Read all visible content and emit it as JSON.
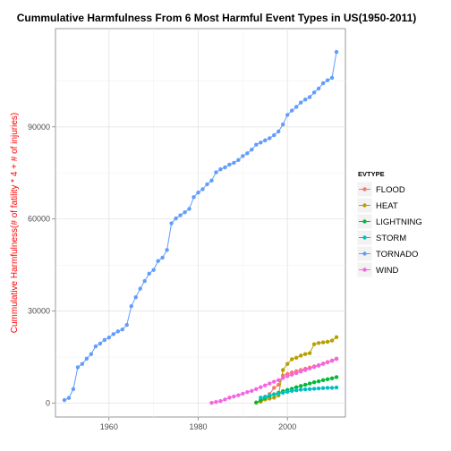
{
  "chart_data": {
    "type": "line",
    "title": "Cummulative Harmfulness From 6 Most Harmful Event Types in US(1950-2011)",
    "ylabel": "Cummulative Harmfulness(# of fatility * 4 + # of injuries)",
    "ylabel_color": "#ff0000",
    "xlabel": "",
    "xlim": [
      1948,
      2013
    ],
    "ylim": [
      -4500,
      122000
    ],
    "x_ticks": [
      1960,
      1980,
      2000
    ],
    "y_ticks": [
      0,
      30000,
      60000,
      90000
    ],
    "y_tick_labels": [
      "0",
      "30000",
      "60000",
      "90000"
    ],
    "grid": true,
    "legend_position": "right",
    "legend_title": "EVTYPE",
    "series": [
      {
        "name": "FLOOD",
        "color": "#f8766d",
        "x": [
          1993,
          1994,
          1995,
          1996,
          1997,
          1998,
          1999,
          2000,
          2001,
          2002,
          2003,
          2004,
          2005,
          2006,
          2007,
          2008,
          2009,
          2010,
          2011
        ],
        "y": [
          200,
          500,
          1500,
          3000,
          5000,
          6000,
          9000,
          9500,
          10000,
          10400,
          10800,
          11200,
          11600,
          12000,
          12400,
          12900,
          13400,
          13900,
          14500
        ]
      },
      {
        "name": "HEAT",
        "color": "#b79f00",
        "x": [
          1993,
          1994,
          1995,
          1996,
          1997,
          1998,
          1999,
          2000,
          2001,
          2002,
          2003,
          2004,
          2005,
          2006,
          2007,
          2008,
          2009,
          2010,
          2011
        ],
        "y": [
          200,
          500,
          1200,
          1500,
          1800,
          2500,
          10800,
          12800,
          14300,
          14800,
          15500,
          16000,
          16300,
          19200,
          19600,
          19800,
          20000,
          20400,
          21500
        ]
      },
      {
        "name": "LIGHTNING",
        "color": "#00ba38",
        "x": [
          1993,
          1994,
          1995,
          1996,
          1997,
          1998,
          1999,
          2000,
          2001,
          2002,
          2003,
          2004,
          2005,
          2006,
          2007,
          2008,
          2009,
          2010,
          2011
        ],
        "y": [
          200,
          1000,
          1700,
          2300,
          2900,
          3400,
          3900,
          4300,
          4700,
          5200,
          5600,
          6000,
          6400,
          6800,
          7100,
          7500,
          7800,
          8100,
          8500
        ]
      },
      {
        "name": "STORM",
        "color": "#00bfc4",
        "x": [
          1994,
          1995,
          1996,
          1997,
          1998,
          1999,
          2000,
          2001,
          2002,
          2003,
          2004,
          2005,
          2006,
          2007,
          2008,
          2009,
          2010,
          2011
        ],
        "y": [
          1800,
          2100,
          2500,
          2800,
          3100,
          3400,
          3700,
          4000,
          4200,
          4400,
          4500,
          4600,
          4700,
          4800,
          4900,
          5000,
          5000,
          5100
        ]
      },
      {
        "name": "TORNADO",
        "color": "#619cff",
        "x": [
          1950,
          1951,
          1952,
          1953,
          1954,
          1955,
          1956,
          1957,
          1958,
          1959,
          1960,
          1961,
          1962,
          1963,
          1964,
          1965,
          1966,
          1967,
          1968,
          1969,
          1970,
          1971,
          1972,
          1973,
          1974,
          1975,
          1976,
          1977,
          1978,
          1979,
          1980,
          1981,
          1982,
          1983,
          1984,
          1985,
          1986,
          1987,
          1988,
          1989,
          1990,
          1991,
          1992,
          1993,
          1994,
          1995,
          1996,
          1997,
          1998,
          1999,
          2000,
          2001,
          2002,
          2003,
          2004,
          2005,
          2006,
          2007,
          2008,
          2009,
          2010,
          2011
        ],
        "y": [
          1000,
          1700,
          4600,
          11700,
          12800,
          14500,
          16000,
          18500,
          19400,
          20600,
          21400,
          22500,
          23400,
          24000,
          25500,
          31600,
          34500,
          37300,
          39800,
          42200,
          43400,
          46300,
          47400,
          49900,
          58600,
          60200,
          61200,
          62200,
          63300,
          67100,
          68600,
          69700,
          71300,
          72500,
          75200,
          76200,
          76800,
          77700,
          78300,
          79200,
          80500,
          81400,
          82600,
          84200,
          84900,
          85600,
          86300,
          87300,
          88500,
          90800,
          93900,
          95300,
          96500,
          97900,
          98900,
          99700,
          101200,
          102500,
          104200,
          105200,
          106000,
          114400
        ]
      },
      {
        "name": "WIND",
        "color": "#f564e3",
        "x": [
          1983,
          1984,
          1985,
          1986,
          1987,
          1988,
          1989,
          1990,
          1991,
          1992,
          1993,
          1994,
          1995,
          1996,
          1997,
          1998,
          1999,
          2000,
          2001,
          2002,
          2003,
          2004,
          2005,
          2006,
          2007,
          2008,
          2009,
          2010,
          2011
        ],
        "y": [
          100,
          400,
          700,
          1200,
          1800,
          2200,
          2600,
          3100,
          3600,
          4000,
          4600,
          5200,
          5800,
          6400,
          7000,
          7500,
          8200,
          8800,
          9300,
          9800,
          10300,
          10800,
          11300,
          11800,
          12200,
          12800,
          13300,
          13800,
          14400
        ]
      }
    ]
  }
}
